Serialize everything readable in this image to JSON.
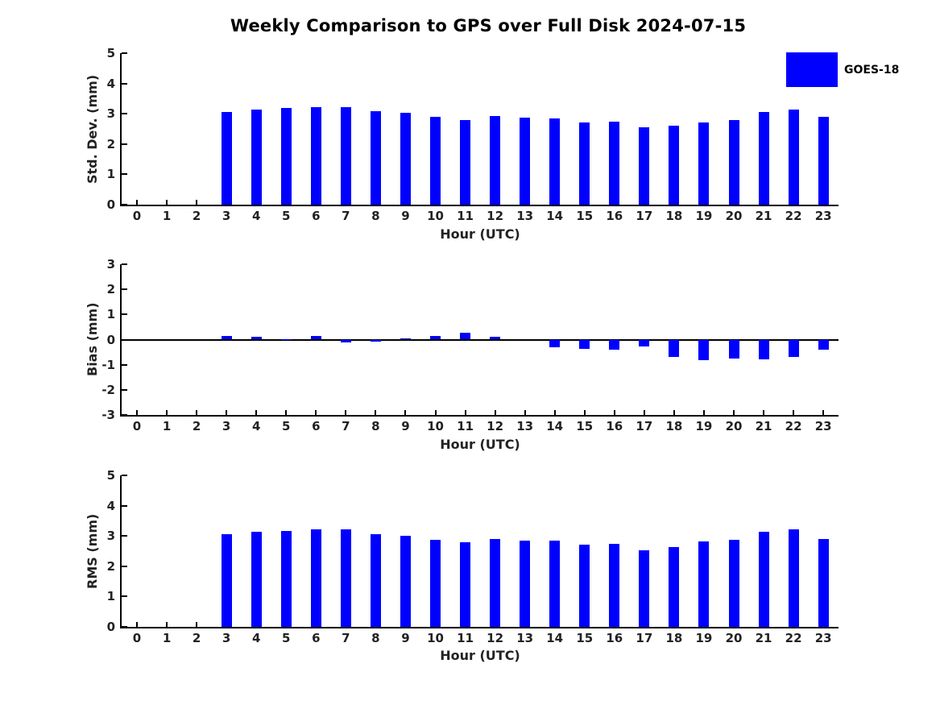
{
  "title": "Weekly Comparison to GPS over Full Disk 2024-07-15",
  "bar_color": "#0000FF",
  "legend": {
    "label": "GOES-18",
    "swatch_color": "#0000FF",
    "position": "top-right"
  },
  "chart_data": [
    {
      "type": "bar",
      "title": "Weekly Comparison to GPS over Full Disk 2024-07-15",
      "ylabel": "Std. Dev. (mm)",
      "xlabel": "Hour (UTC)",
      "ylim": [
        0,
        5
      ],
      "yticks": [
        0,
        1,
        2,
        3,
        4,
        5
      ],
      "grid": false,
      "legend_entries": [
        "GOES-18"
      ],
      "categories": [
        "0",
        "1",
        "2",
        "3",
        "4",
        "5",
        "6",
        "7",
        "8",
        "9",
        "10",
        "11",
        "12",
        "13",
        "14",
        "15",
        "16",
        "17",
        "18",
        "19",
        "20",
        "21",
        "22",
        "23"
      ],
      "values": [
        null,
        null,
        null,
        3.05,
        3.15,
        3.18,
        3.21,
        3.21,
        3.08,
        3.02,
        2.89,
        2.79,
        2.92,
        2.87,
        2.85,
        2.71,
        2.75,
        2.56,
        2.6,
        2.71,
        2.8,
        3.05,
        3.15,
        2.89
      ]
    },
    {
      "type": "bar",
      "ylabel": "Bias (mm)",
      "xlabel": "Hour (UTC)",
      "ylim": [
        -3,
        3
      ],
      "yticks": [
        -3,
        -2,
        -1,
        0,
        1,
        2,
        3
      ],
      "grid": false,
      "zero_line": true,
      "categories": [
        "0",
        "1",
        "2",
        "3",
        "4",
        "5",
        "6",
        "7",
        "8",
        "9",
        "10",
        "11",
        "12",
        "13",
        "14",
        "15",
        "16",
        "17",
        "18",
        "19",
        "20",
        "21",
        "22",
        "23"
      ],
      "values": [
        null,
        null,
        null,
        0.15,
        0.12,
        0.02,
        0.15,
        -0.1,
        -0.08,
        0.06,
        0.13,
        0.26,
        0.12,
        0.0,
        -0.32,
        -0.36,
        -0.39,
        -0.26,
        -0.68,
        -0.82,
        -0.75,
        -0.79,
        -0.69,
        -0.4
      ]
    },
    {
      "type": "bar",
      "ylabel": "RMS (mm)",
      "xlabel": "Hour (UTC)",
      "ylim": [
        0,
        5
      ],
      "yticks": [
        0,
        1,
        2,
        3,
        4,
        5
      ],
      "grid": false,
      "categories": [
        "0",
        "1",
        "2",
        "3",
        "4",
        "5",
        "6",
        "7",
        "8",
        "9",
        "10",
        "11",
        "12",
        "13",
        "14",
        "15",
        "16",
        "17",
        "18",
        "19",
        "20",
        "21",
        "22",
        "23"
      ],
      "values": [
        null,
        null,
        null,
        3.05,
        3.14,
        3.17,
        3.21,
        3.21,
        3.07,
        3.0,
        2.88,
        2.79,
        2.91,
        2.85,
        2.85,
        2.71,
        2.75,
        2.53,
        2.62,
        2.82,
        2.87,
        3.13,
        3.22,
        2.91
      ]
    }
  ]
}
